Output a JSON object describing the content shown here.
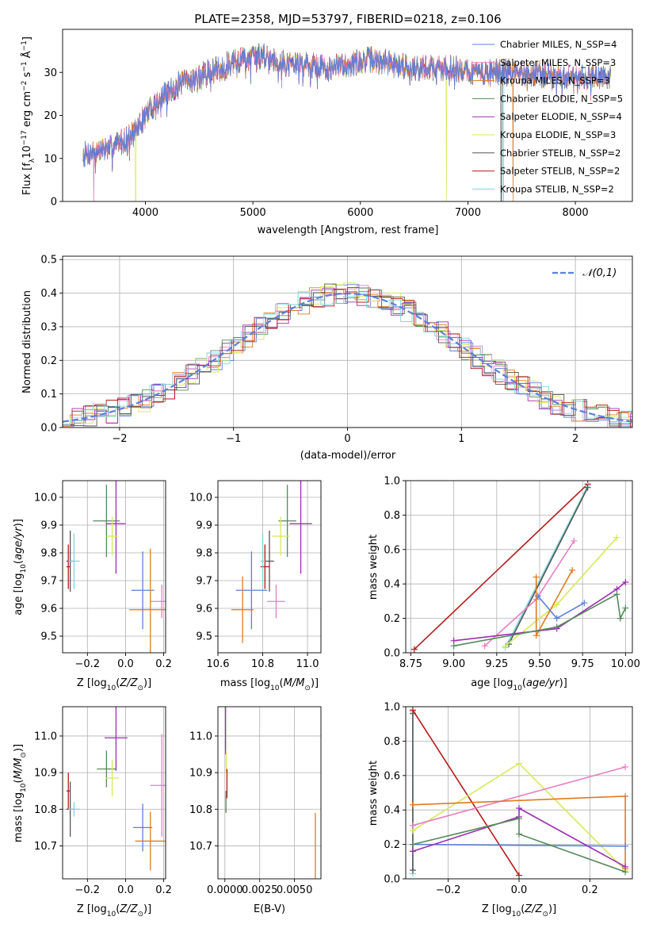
{
  "chart_data": [
    {
      "id": "spectrum",
      "type": "line",
      "title": "PLATE=2358, MJD=53797, FIBERID=0218, z=0.106",
      "xlabel": "wavelength [Angstrom, rest frame]",
      "ylabel": "Flux [f_λ10^-17 erg cm^-2 s^-1 Å^-1]",
      "xlim": [
        3230,
        8530
      ],
      "ylim": [
        0,
        40
      ],
      "xticks": [
        4000,
        5000,
        6000,
        7000,
        8000
      ],
      "yticks": [
        0,
        10,
        20,
        30
      ],
      "grid": false,
      "legend_loc": "upper right",
      "spectrum_envelope": {
        "x": [
          3450,
          3600,
          3700,
          3800,
          3900,
          4000,
          4100,
          4200,
          4300,
          4500,
          4700,
          4900,
          5100,
          5300,
          5500,
          5700,
          5900,
          6100,
          6300,
          6500,
          6700,
          6900,
          7100,
          7300,
          7500,
          7700,
          7900,
          8100,
          8300
        ],
        "y": [
          11,
          12,
          13,
          14,
          16,
          20,
          23,
          25,
          27,
          29,
          31,
          33,
          34,
          32,
          32,
          31,
          32,
          33,
          32,
          31,
          31,
          31,
          30,
          30,
          30,
          29.5,
          29,
          29,
          29
        ]
      },
      "series": [
        {
          "name": "Chabrier MILES, N_SSP=4",
          "color": "#5b7fdb"
        },
        {
          "name": "Salpeter MILES, N_SSP=3",
          "color": "#e77cc2"
        },
        {
          "name": "Kroupa MILES, N_SSP=3",
          "color": "#e07a21"
        },
        {
          "name": "Chabrier ELODIE, N_SSP=5",
          "color": "#558a5b"
        },
        {
          "name": "Salpeter ELODIE, N_SSP=4",
          "color": "#9b2db3"
        },
        {
          "name": "Kroupa ELODIE, N_SSP=3",
          "color": "#d6e85a"
        },
        {
          "name": "Chabrier STELIB, N_SSP=2",
          "color": "#555555"
        },
        {
          "name": "Salpeter STELIB, N_SSP=2",
          "color": "#b51a1a"
        },
        {
          "name": "Kroupa STELIB, N_SSP=2",
          "color": "#7dd6dd"
        }
      ]
    },
    {
      "id": "residuals",
      "type": "line",
      "xlabel": "(data-model)/error",
      "ylabel": "Normed distribution",
      "xlim": [
        -2.5,
        2.5
      ],
      "ylim": [
        0,
        0.51
      ],
      "xticks": [
        -2,
        -1,
        0,
        1,
        2
      ],
      "yticks": [
        0.0,
        0.1,
        0.2,
        0.3,
        0.4,
        0.5
      ],
      "grid": true,
      "legend_loc": "upper right",
      "legend": "𝒩(0,1)",
      "gaussian": {
        "mu": 0,
        "sigma": 1,
        "color": "#5b7fdb"
      },
      "histogram_bin_width": 0.1
    },
    {
      "id": "age_vs_z",
      "type": "scatter",
      "xlabel": "Z [log10(Z/Z⊙)]",
      "ylabel": "age [log10(age/yr)]",
      "xlim": [
        -0.33,
        0.21
      ],
      "ylim": [
        9.44,
        10.06
      ],
      "xticks": [
        -0.2,
        0.0,
        0.2
      ],
      "xtick_labels": [
        "−0.2",
        "0.0",
        "0.2"
      ],
      "yticks": [
        9.5,
        9.6,
        9.7,
        9.8,
        9.9,
        10.0
      ],
      "grid": true,
      "points": [
        {
          "x": 0.09,
          "y": 9.665,
          "xerr": 0.06,
          "yerr": 0.14,
          "color": "#5b7fdb"
        },
        {
          "x": 0.19,
          "y": 9.625,
          "xerr": 0.06,
          "yerr": 0.06,
          "color": "#e77cc2"
        },
        {
          "x": 0.13,
          "y": 9.595,
          "xerr": 0.11,
          "yerr": 0.22,
          "color": "#e07a21"
        },
        {
          "x": -0.1,
          "y": 9.915,
          "xerr": 0.07,
          "yerr": 0.13,
          "color": "#558a5b"
        },
        {
          "x": -0.05,
          "y": 9.905,
          "xerr": 0.05,
          "yerr": 0.18,
          "color": "#9b2db3"
        },
        {
          "x": -0.07,
          "y": 9.86,
          "xerr": 0.03,
          "yerr": 0.07,
          "color": "#d6e85a"
        },
        {
          "x": -0.29,
          "y": 9.77,
          "xerr": 0.02,
          "yerr": 0.11,
          "color": "#555555"
        },
        {
          "x": -0.3,
          "y": 9.75,
          "xerr": 0.01,
          "yerr": 0.08,
          "color": "#b51a1a"
        },
        {
          "x": -0.27,
          "y": 9.77,
          "xerr": 0.03,
          "yerr": 0.1,
          "color": "#7dd6dd"
        }
      ]
    },
    {
      "id": "age_vs_mass",
      "type": "scatter",
      "xlabel": "mass [log10(M/M⊙)]",
      "xlim": [
        10.6,
        11.06
      ],
      "ylim": [
        9.44,
        10.06
      ],
      "xticks": [
        10.6,
        10.8,
        11.0
      ],
      "yticks": [
        9.5,
        9.6,
        9.7,
        9.8,
        9.9,
        10.0
      ],
      "grid": true,
      "points": [
        {
          "x": 10.75,
          "y": 9.665,
          "xerr": 0.07,
          "yerr": 0.14,
          "color": "#5b7fdb"
        },
        {
          "x": 10.86,
          "y": 9.625,
          "xerr": 0.04,
          "yerr": 0.06,
          "color": "#e77cc2"
        },
        {
          "x": 10.71,
          "y": 9.595,
          "xerr": 0.05,
          "yerr": 0.12,
          "color": "#e07a21"
        },
        {
          "x": 10.91,
          "y": 9.915,
          "xerr": 0.04,
          "yerr": 0.13,
          "color": "#558a5b"
        },
        {
          "x": 10.97,
          "y": 9.905,
          "xerr": 0.05,
          "yerr": 0.18,
          "color": "#9b2db3"
        },
        {
          "x": 10.88,
          "y": 9.86,
          "xerr": 0.04,
          "yerr": 0.07,
          "color": "#d6e85a"
        },
        {
          "x": 10.83,
          "y": 9.77,
          "xerr": 0.02,
          "yerr": 0.11,
          "color": "#555555"
        },
        {
          "x": 10.81,
          "y": 9.75,
          "xerr": 0.02,
          "yerr": 0.08,
          "color": "#b51a1a"
        },
        {
          "x": 10.8,
          "y": 9.77,
          "xerr": 0.01,
          "yerr": 0.1,
          "color": "#7dd6dd"
        }
      ]
    },
    {
      "id": "weight_vs_age",
      "type": "line",
      "xlabel": "age [log10(age/yr)]",
      "ylabel": "mass weight",
      "xlim": [
        8.72,
        10.04
      ],
      "ylim": [
        0,
        1
      ],
      "xticks": [
        8.75,
        9.0,
        9.25,
        9.5,
        9.75,
        10.0
      ],
      "yticks": [
        0.0,
        0.2,
        0.4,
        0.6,
        0.8,
        1.0
      ],
      "grid": true,
      "series": [
        {
          "color": "#b51a1a",
          "x": [
            8.77,
            9.78
          ],
          "y": [
            0.02,
            0.98
          ]
        },
        {
          "color": "#7dd6dd",
          "x": [
            9.3,
            9.78
          ],
          "y": [
            0.03,
            0.97
          ]
        },
        {
          "color": "#555555",
          "x": [
            9.32,
            9.78
          ],
          "y": [
            0.05,
            0.96
          ]
        },
        {
          "color": "#e77cc2",
          "x": [
            9.18,
            9.48,
            9.7
          ],
          "y": [
            0.04,
            0.31,
            0.65
          ]
        },
        {
          "color": "#d6e85a",
          "x": [
            9.3,
            9.6,
            9.95
          ],
          "y": [
            0.04,
            0.28,
            0.67
          ]
        },
        {
          "color": "#e07a21",
          "x": [
            9.48,
            9.48,
            9.69
          ],
          "y": [
            0.44,
            0.1,
            0.48
          ]
        },
        {
          "color": "#5b7fdb",
          "x": [
            9.49,
            9.6,
            9.76
          ],
          "y": [
            0.33,
            0.2,
            0.29
          ]
        },
        {
          "color": "#9b2db3",
          "x": [
            9.0,
            9.6,
            9.95,
            10.0
          ],
          "y": [
            0.07,
            0.14,
            0.37,
            0.41
          ]
        },
        {
          "color": "#558a5b",
          "x": [
            9.0,
            9.6,
            9.95,
            9.97,
            10.0
          ],
          "y": [
            0.04,
            0.15,
            0.34,
            0.2,
            0.26
          ]
        }
      ]
    },
    {
      "id": "mass_vs_z",
      "type": "scatter",
      "xlabel": "Z [log10(Z/Z⊙)]",
      "ylabel": "mass [log10(M/M⊙)]",
      "xlim": [
        -0.33,
        0.21
      ],
      "ylim": [
        10.61,
        11.08
      ],
      "xticks": [
        -0.2,
        0.0,
        0.2
      ],
      "xtick_labels": [
        "−0.2",
        "0.0",
        "0.2"
      ],
      "yticks": [
        10.7,
        10.8,
        10.9,
        11.0
      ],
      "grid": true,
      "points": [
        {
          "x": 0.09,
          "y": 10.75,
          "xerr": 0.05,
          "yerr": 0.065,
          "color": "#5b7fdb"
        },
        {
          "x": 0.19,
          "y": 10.865,
          "xerr": 0.06,
          "yerr": 0.14,
          "color": "#e77cc2"
        },
        {
          "x": 0.13,
          "y": 10.713,
          "xerr": 0.08,
          "yerr": 0.08,
          "color": "#e07a21"
        },
        {
          "x": -0.1,
          "y": 10.91,
          "xerr": 0.05,
          "yerr": 0.05,
          "color": "#558a5b"
        },
        {
          "x": -0.05,
          "y": 10.995,
          "xerr": 0.06,
          "yerr": 0.09,
          "color": "#9b2db3"
        },
        {
          "x": -0.07,
          "y": 10.885,
          "xerr": 0.035,
          "yerr": 0.05,
          "color": "#d6e85a"
        },
        {
          "x": -0.29,
          "y": 10.8,
          "xerr": 0.02,
          "yerr": 0.075,
          "color": "#555555"
        },
        {
          "x": -0.3,
          "y": 10.85,
          "xerr": 0.01,
          "yerr": 0.05,
          "color": "#b51a1a"
        },
        {
          "x": -0.27,
          "y": 10.8,
          "xerr": 0.03,
          "yerr": 0.02,
          "color": "#7dd6dd"
        }
      ]
    },
    {
      "id": "mass_vs_ebv",
      "type": "scatter",
      "xlabel": "E(B-V)",
      "xlim": [
        -0.0005,
        0.0069
      ],
      "ylim": [
        10.61,
        11.08
      ],
      "xticks": [
        0.0,
        0.0025,
        0.005
      ],
      "xtick_labels": [
        "0.0000",
        "0.0025",
        "0.0050"
      ],
      "yticks": [
        10.7,
        10.8,
        10.9,
        11.0
      ],
      "grid": true,
      "points": [
        {
          "x": 5e-05,
          "y": 11.03,
          "xerr": 0,
          "yerr": 0.08,
          "color": "#9b2db3"
        },
        {
          "x": 0.0001,
          "y": 10.93,
          "xerr": 0,
          "yerr": 0.03,
          "color": "#d6e85a"
        },
        {
          "x": 8e-05,
          "y": 10.82,
          "xerr": 0,
          "yerr": 0.03,
          "color": "#558a5b"
        },
        {
          "x": 0.00015,
          "y": 10.87,
          "xerr": 0,
          "yerr": 0.04,
          "color": "#b51a1a"
        },
        {
          "x": 0.0065,
          "y": 10.7,
          "xerr": 0,
          "yerr": 0.09,
          "color": "#e07a21"
        }
      ]
    },
    {
      "id": "weight_vs_z",
      "type": "line",
      "xlabel": "Z [log10(Z/Z⊙)]",
      "ylabel": "mass weight",
      "xlim": [
        -0.32,
        0.32
      ],
      "ylim": [
        0,
        1
      ],
      "xticks": [
        -0.2,
        0.0,
        0.2
      ],
      "xtick_labels": [
        "−0.2",
        "0.0",
        "0.2"
      ],
      "yticks": [
        0.0,
        0.2,
        0.4,
        0.6,
        0.8,
        1.0
      ],
      "grid": true,
      "series": [
        {
          "color": "#7dd6dd",
          "x": [
            -0.3,
            -0.3
          ],
          "y": [
            0.03,
            0.97
          ]
        },
        {
          "color": "#555555",
          "x": [
            -0.3,
            -0.3
          ],
          "y": [
            0.05,
            0.96
          ]
        },
        {
          "color": "#b51a1a",
          "x": [
            -0.3,
            0.0
          ],
          "y": [
            0.98,
            0.02
          ]
        },
        {
          "color": "#d6e85a",
          "x": [
            -0.3,
            0.0,
            0.3
          ],
          "y": [
            0.28,
            0.67,
            0.05
          ]
        },
        {
          "color": "#e77cc2",
          "x": [
            -0.3,
            0.3
          ],
          "y": [
            0.31,
            0.65
          ]
        },
        {
          "color": "#e07a21",
          "x": [
            -0.3,
            0.3,
            0.3
          ],
          "y": [
            0.43,
            0.48,
            0.06
          ]
        },
        {
          "color": "#5b7fdb",
          "x": [
            -0.3,
            0.3
          ],
          "y": [
            0.2,
            0.19
          ]
        },
        {
          "color": "#9b2db3",
          "x": [
            -0.3,
            0.0,
            0.0,
            0.3
          ],
          "y": [
            0.16,
            0.36,
            0.41,
            0.07
          ]
        },
        {
          "color": "#558a5b",
          "x": [
            -0.3,
            0.0,
            0.0,
            0.3
          ],
          "y": [
            0.2,
            0.35,
            0.26,
            0.04
          ]
        }
      ]
    }
  ]
}
